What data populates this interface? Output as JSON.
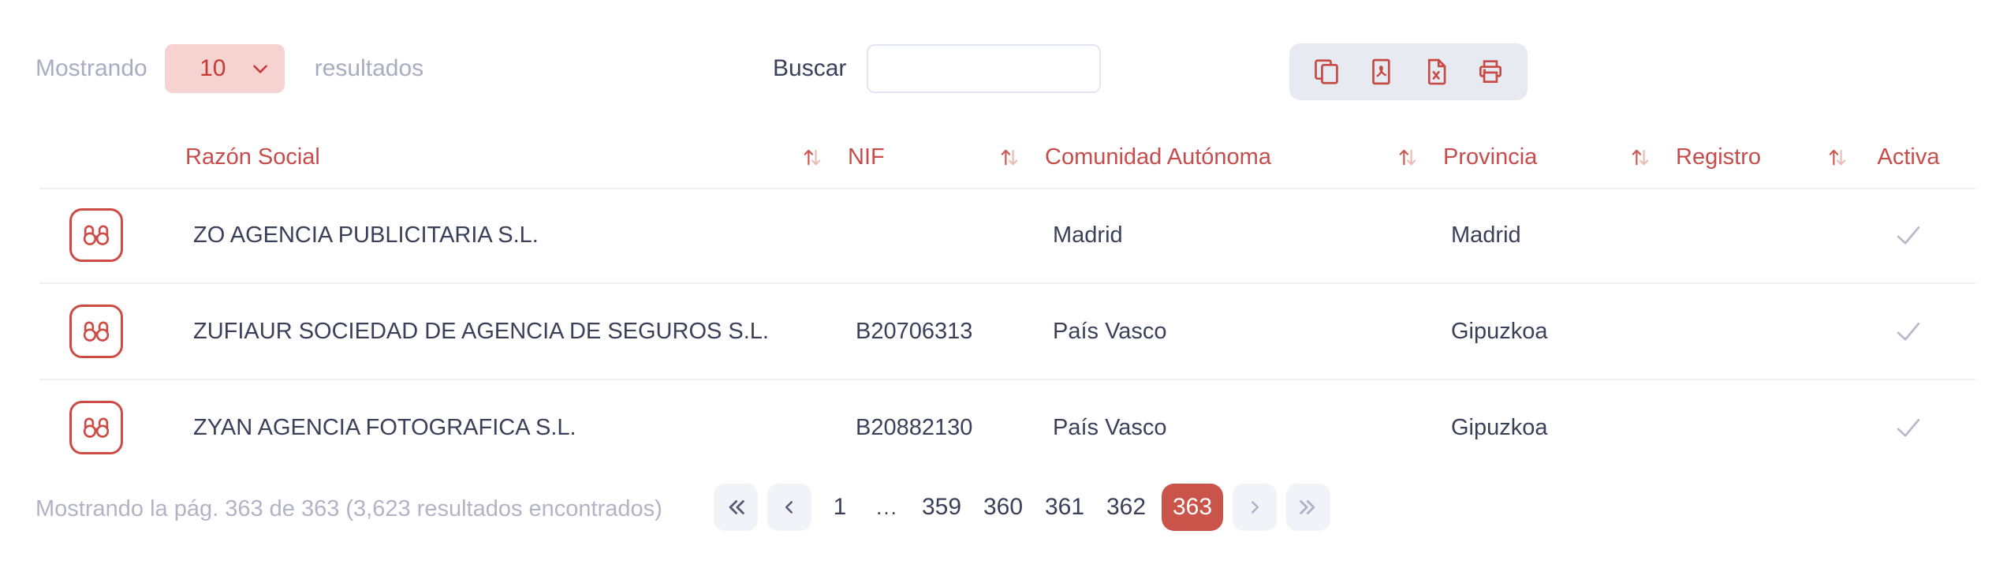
{
  "colors": {
    "accent_red": "#c64b45",
    "header_red": "#c74c4c",
    "select_bg": "#f6d2d0",
    "select_text": "#c53a35",
    "active_page_bg": "#ca544a",
    "text_dark": "#3b405a",
    "text_muted": "#a9adc2",
    "toolbar_bg": "#e8eaf1",
    "pagination_button_bg": "#f2f3f8",
    "divider": "#eef0f4",
    "check": "#b6bac8"
  },
  "controls": {
    "showing_label": "Mostrando",
    "page_size_value": "10",
    "results_label": "resultados",
    "search_label": "Buscar",
    "search_value": "",
    "export_buttons": [
      {
        "name": "copy",
        "icon": "copy-icon"
      },
      {
        "name": "export-pdf",
        "icon": "file-pdf-icon"
      },
      {
        "name": "export-excel",
        "icon": "file-excel-icon"
      },
      {
        "name": "print",
        "icon": "print-icon"
      }
    ]
  },
  "table": {
    "headers": [
      {
        "label": "Razón Social",
        "key": "razon_social",
        "sortable": true
      },
      {
        "label": "NIF",
        "key": "nif",
        "sortable": true
      },
      {
        "label": "Comunidad Autónoma",
        "key": "comunidad_autonoma",
        "sortable": true
      },
      {
        "label": "Provincia",
        "key": "provincia",
        "sortable": true
      },
      {
        "label": "Registro",
        "key": "registro",
        "sortable": true
      },
      {
        "label": "Activa",
        "key": "activa",
        "sortable": false
      }
    ],
    "rows": [
      {
        "razon_social": "ZO AGENCIA PUBLICITARIA S.L.",
        "nif": "",
        "comunidad_autonoma": "Madrid",
        "provincia": "Madrid",
        "registro": "",
        "activa": true
      },
      {
        "razon_social": "ZUFIAUR SOCIEDAD DE AGENCIA DE SEGUROS S.L.",
        "nif": "B20706313",
        "comunidad_autonoma": "País Vasco",
        "provincia": "Gipuzkoa",
        "registro": "",
        "activa": true
      },
      {
        "razon_social": "ZYAN AGENCIA FOTOGRAFICA S.L.",
        "nif": "B20882130",
        "comunidad_autonoma": "País Vasco",
        "provincia": "Gipuzkoa",
        "registro": "",
        "activa": true
      }
    ]
  },
  "pagination": {
    "summary": "Mostrando la pág. 363 de 363 (3,623 resultados encontrados)",
    "pages": [
      "1",
      "...",
      "359",
      "360",
      "361",
      "362",
      "363"
    ],
    "active_page": "363",
    "nav": [
      {
        "name": "first-page",
        "icon": "chevrons-left-icon",
        "disabled": false
      },
      {
        "name": "previous-page",
        "icon": "chevron-left-icon",
        "disabled": false
      },
      {
        "name": "next-page",
        "icon": "chevron-right-icon",
        "disabled": true
      },
      {
        "name": "last-page",
        "icon": "chevrons-right-icon",
        "disabled": true
      }
    ]
  }
}
